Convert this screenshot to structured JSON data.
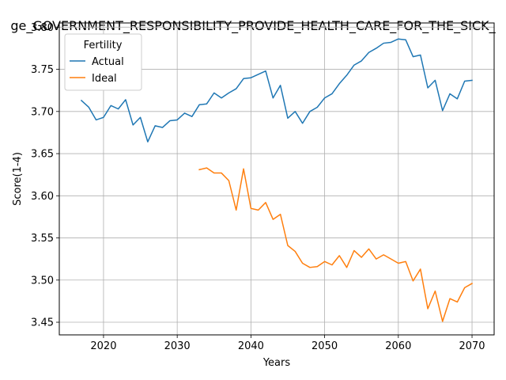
{
  "chart_data": {
    "type": "line",
    "title": "ge_GOVERNMENT_RESPONSIBILITY_PROVIDE_HEALTH_CARE_FOR_THE_SICK_",
    "xlabel": "Years",
    "ylabel": "Score(1-4)",
    "xlim": [
      2014,
      2073
    ],
    "ylim": [
      3.435,
      3.805
    ],
    "xticks": [
      2020,
      2030,
      2040,
      2050,
      2060,
      2070
    ],
    "yticks": [
      3.45,
      3.5,
      3.55,
      3.6,
      3.65,
      3.7,
      3.75,
      3.8
    ],
    "ytick_labels": [
      "3.45",
      "3.50",
      "3.55",
      "3.60",
      "3.65",
      "3.70",
      "3.75",
      "3.80"
    ],
    "grid": true,
    "legend": {
      "title": "Fertility",
      "placement": "top-left"
    },
    "series": [
      {
        "name": "Actual",
        "color": "#1f77b4",
        "x": [
          2017,
          2018,
          2019,
          2020,
          2021,
          2022,
          2023,
          2024,
          2025,
          2026,
          2027,
          2028,
          2029,
          2030,
          2031,
          2032,
          2033,
          2034,
          2035,
          2036,
          2037,
          2038,
          2039,
          2040,
          2041,
          2042,
          2043,
          2044,
          2045,
          2046,
          2047,
          2048,
          2049,
          2050,
          2051,
          2052,
          2053,
          2054,
          2055,
          2056,
          2057,
          2058,
          2059,
          2060,
          2061,
          2062,
          2063,
          2064,
          2065,
          2066,
          2067,
          2068,
          2069,
          2070
        ],
        "y": [
          3.713,
          3.705,
          3.69,
          3.693,
          3.707,
          3.703,
          3.714,
          3.684,
          3.693,
          3.664,
          3.683,
          3.681,
          3.689,
          3.69,
          3.698,
          3.694,
          3.708,
          3.709,
          3.722,
          3.716,
          3.722,
          3.727,
          3.739,
          3.74,
          3.744,
          3.748,
          3.716,
          3.731,
          3.692,
          3.7,
          3.686,
          3.7,
          3.705,
          3.716,
          3.721,
          3.733,
          3.743,
          3.755,
          3.76,
          3.77,
          3.775,
          3.781,
          3.782,
          3.786,
          3.785,
          3.765,
          3.767,
          3.728,
          3.737,
          3.701,
          3.721,
          3.715,
          3.736,
          3.737
        ]
      },
      {
        "name": "Ideal",
        "color": "#ff7f0e",
        "x": [
          2033,
          2034,
          2035,
          2036,
          2037,
          2038,
          2039,
          2040,
          2041,
          2042,
          2043,
          2044,
          2045,
          2046,
          2047,
          2048,
          2049,
          2050,
          2051,
          2052,
          2053,
          2054,
          2055,
          2056,
          2057,
          2058,
          2059,
          2060,
          2061,
          2062,
          2063,
          2064,
          2065,
          2066,
          2067,
          2068,
          2069,
          2070
        ],
        "y": [
          3.631,
          3.633,
          3.627,
          3.627,
          3.618,
          3.583,
          3.632,
          3.585,
          3.583,
          3.592,
          3.572,
          3.578,
          3.541,
          3.534,
          3.52,
          3.515,
          3.516,
          3.522,
          3.518,
          3.529,
          3.515,
          3.535,
          3.527,
          3.537,
          3.525,
          3.53,
          3.525,
          3.52,
          3.522,
          3.499,
          3.513,
          3.466,
          3.487,
          3.451,
          3.478,
          3.474,
          3.491,
          3.496
        ]
      }
    ]
  }
}
